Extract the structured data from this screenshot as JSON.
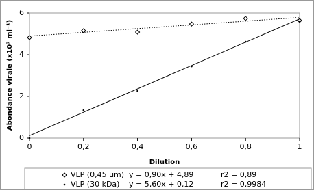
{
  "chart_data": {
    "type": "scatter",
    "x_label": "Dilution",
    "y_label": "Abondance virale (x10⁷ ml⁻¹)",
    "xlim": [
      0,
      1
    ],
    "xticks": [
      0,
      {
        "value": 0.2,
        "label": "0,2"
      },
      {
        "value": 0.4,
        "label": "0,4"
      },
      {
        "value": 0.6,
        "label": "0,6"
      },
      {
        "value": 0.8,
        "label": "0,8"
      },
      1
    ],
    "ylim": [
      0,
      6
    ],
    "yticks": [
      0,
      2,
      4,
      6
    ],
    "series": [
      {
        "name": "VLP (0,45 um)",
        "color": "#000000",
        "marker": "diamond",
        "x": [
          0,
          0.2,
          0.4,
          0.6,
          0.8,
          1
        ],
        "values": [
          4.82,
          5.15,
          5.08,
          5.47,
          5.74,
          5.64
        ],
        "trendline": {
          "slope": 0.9,
          "intercept": 4.89,
          "style": "dotted",
          "equation": "y = 0,90x + 4,89",
          "r2": "r2 = 0,89"
        }
      },
      {
        "name": "VLP (30 kDa)",
        "color": "#000000",
        "marker": "dot",
        "x": [
          0,
          0.2,
          0.4,
          0.6,
          0.8,
          1
        ],
        "values": [
          0.0,
          1.34,
          2.26,
          3.44,
          4.62,
          5.6
        ],
        "trendline": {
          "slope": 5.6,
          "intercept": 0.12,
          "style": "solid",
          "equation": "y = 5,60x + 0,12",
          "r2": "r2 = 0,9984"
        }
      }
    ]
  }
}
